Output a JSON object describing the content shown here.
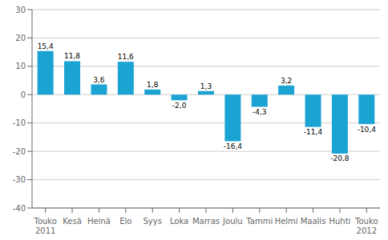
{
  "chart_data": {
    "type": "bar",
    "categories": [
      "Touko\n2011",
      "Kesä",
      "Heinä",
      "Elo",
      "Syys",
      "Loka",
      "Marras",
      "Joulu",
      "Tammi",
      "Helmi",
      "Maalis",
      "Huhti",
      "Touko\n2012"
    ],
    "values": [
      15.4,
      11.8,
      3.6,
      11.6,
      1.8,
      -2.0,
      1.3,
      -16.4,
      -4.3,
      3.2,
      -11.4,
      -20.8,
      -10.4
    ],
    "value_labels": [
      "15,4",
      "11,8",
      "3,6",
      "11,6",
      "1,8",
      "-2,0",
      "1,3",
      "-16,4",
      "-4,3",
      "3,2",
      "-11,4",
      "-20,8",
      "-10,4"
    ],
    "data_labels": true,
    "color": "#1ba3d4",
    "ylim": [
      -40,
      30
    ],
    "yticks": [
      -40,
      -30,
      -20,
      -10,
      0,
      10,
      20,
      30
    ],
    "grid": true
  }
}
